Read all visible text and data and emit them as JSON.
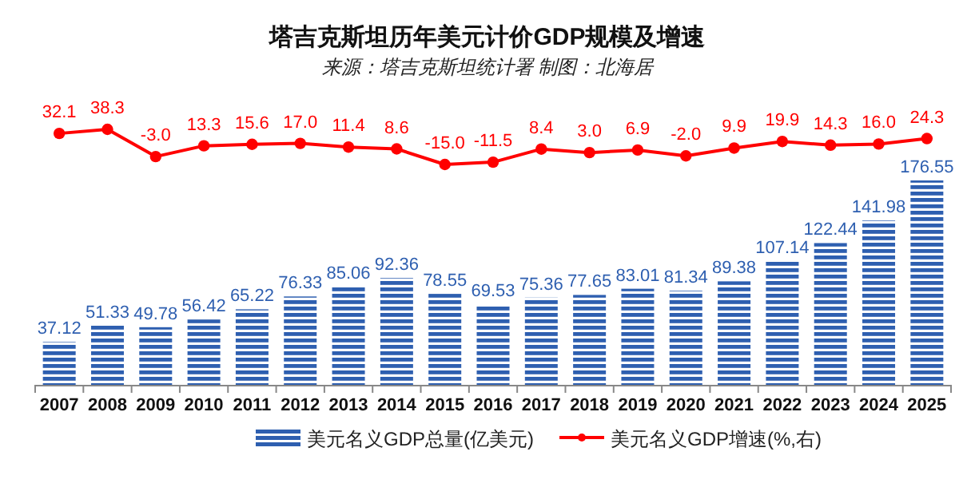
{
  "chart_data": [
    {
      "type": "line",
      "title": "塔吉克斯坦历年美元计价GDP规模及增速",
      "subtitle": "来源：塔吉克斯坦统计署 制图：北海居",
      "categories": [
        null,
        null,
        null,
        null,
        null,
        null,
        null,
        null,
        null,
        null,
        null,
        null,
        null,
        null,
        null,
        null,
        null,
        null,
        null
      ],
      "series": [
        {
          "name": "美元名义GDP增速(%,右)",
          "color": "#ff0000",
          "values": [
            32.1,
            38.3,
            -3.0,
            13.3,
            15.6,
            17.0,
            11.4,
            8.6,
            -15.0,
            -11.5,
            8.4,
            3.0,
            6.9,
            -2.0,
            9.9,
            19.9,
            14.3,
            16.0,
            24.3
          ],
          "value_labels": [
            "32.1",
            "38.3",
            "-3.0",
            "13.3",
            "15.6",
            "17.0",
            "11.4",
            "8.6",
            "-15.0",
            "-11.5",
            "8.4",
            "3.0",
            "6.9",
            "-2.0",
            "9.9",
            "19.9",
            "14.3",
            "16.0",
            "24.3"
          ]
        }
      ],
      "marker": "circle",
      "tick_labels": false,
      "legend": "bottom"
    },
    {
      "type": "bar",
      "categories": [
        "2007",
        "2008",
        "2009",
        "2010",
        "2011",
        "2012",
        "2013",
        "2014",
        "2015",
        "2016",
        "2017",
        "2018",
        "2019",
        "2020",
        "2021",
        "2022",
        "2023",
        "2024",
        "2025"
      ],
      "series": [
        {
          "name": "美元名义GDP总量(亿美元)",
          "type": "bar",
          "color": "#2e5fb0",
          "values": [
            37.12,
            51.33,
            49.78,
            56.42,
            65.22,
            76.33,
            85.06,
            92.36,
            78.55,
            69.53,
            75.36,
            77.65,
            83.01,
            81.34,
            89.38,
            107.14,
            122.44,
            141.98,
            176.55
          ]
        }
      ],
      "data_labels": true,
      "tick_labels": "x",
      "legend": "bottom"
    }
  ]
}
